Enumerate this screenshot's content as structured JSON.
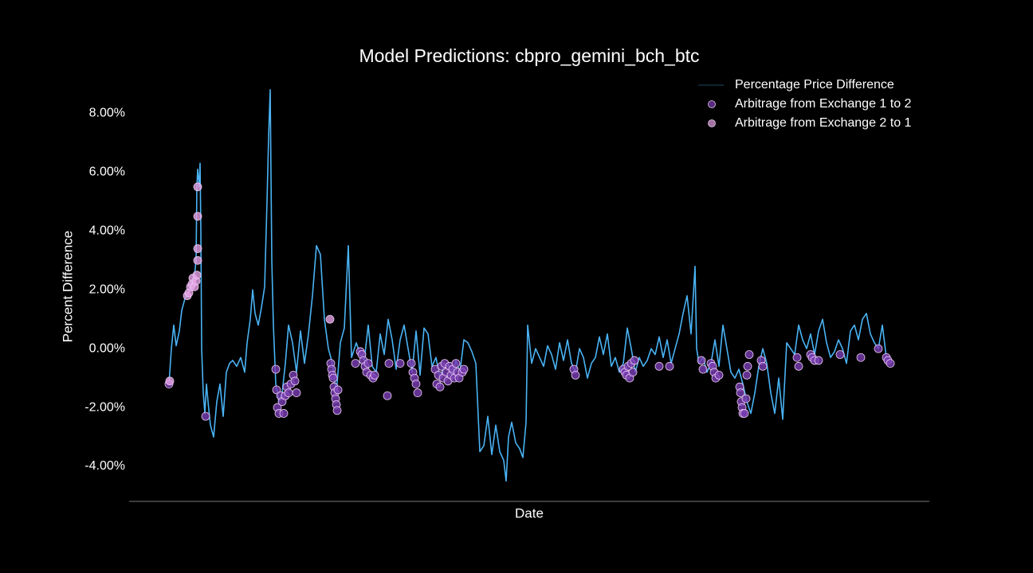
{
  "chart_data": {
    "type": "line",
    "title": "Model Predictions: cbpro_gemini_bch_btc",
    "x_label": "Date",
    "y_label": "Percent Difference",
    "xlim": [
      0,
      1004
    ],
    "ylim": [
      -5.19,
      9.2
    ],
    "yticks": [
      {
        "value": -4,
        "label": "-4.00%"
      },
      {
        "value": -2,
        "label": "-2.00%"
      },
      {
        "value": 0,
        "label": "0.00%"
      },
      {
        "value": 2,
        "label": "2.00%"
      },
      {
        "value": 4,
        "label": "4.00%"
      },
      {
        "value": 6,
        "label": "6.00%"
      },
      {
        "value": 8,
        "label": "8.00%"
      }
    ],
    "legend": "upper right",
    "series": [
      {
        "name": "Percentage Price Difference",
        "type": "line",
        "color": "#4ab3f4",
        "x": [
          50,
          53,
          56,
          59,
          63,
          66,
          70,
          74,
          78,
          82,
          84,
          85,
          86,
          88,
          89,
          90,
          91,
          93,
          95,
          97,
          99,
          102,
          106,
          110,
          114,
          118,
          122,
          126,
          130,
          135,
          140,
          145,
          148,
          152,
          155,
          158,
          162,
          166,
          170,
          173,
          175,
          177,
          179,
          181,
          184,
          188,
          192,
          196,
          200,
          205,
          210,
          215,
          220,
          225,
          230,
          235,
          240,
          245,
          250,
          255,
          260,
          265,
          270,
          275,
          279,
          285,
          290,
          295,
          300,
          305,
          310,
          315,
          320,
          325,
          330,
          335,
          340,
          345,
          350,
          355,
          360,
          365,
          370,
          375,
          380,
          385,
          390,
          395,
          400,
          405,
          410,
          415,
          420,
          425,
          430,
          435,
          440,
          445,
          450,
          455,
          460,
          465,
          470,
          473,
          476,
          480,
          485,
          490,
          494,
          498,
          500,
          505,
          510,
          515,
          520,
          525,
          530,
          535,
          540,
          545,
          550,
          555,
          560,
          565,
          570,
          575,
          580,
          585,
          590,
          595,
          600,
          605,
          610,
          615,
          620,
          625,
          630,
          635,
          640,
          645,
          650,
          655,
          660,
          665,
          670,
          675,
          680,
          685,
          690,
          695,
          700,
          705,
          710,
          712,
          715,
          720,
          725,
          730,
          735,
          740,
          745,
          750,
          755,
          760,
          765,
          770,
          775,
          780,
          785,
          790,
          795,
          800,
          805,
          810,
          815,
          820,
          825,
          830,
          835,
          840,
          845,
          850,
          855,
          860,
          865,
          870,
          875,
          880,
          885,
          890,
          895,
          900,
          905,
          910,
          915,
          920,
          925,
          930,
          935,
          940,
          945,
          950,
          955
        ],
        "values": [
          -1.2,
          0.0,
          0.8,
          0.1,
          0.6,
          1.3,
          1.7,
          1.9,
          2.2,
          2.5,
          3.0,
          5.5,
          6.1,
          5.5,
          6.3,
          4.0,
          0.0,
          -1.5,
          -2.2,
          -1.2,
          -1.8,
          -2.6,
          -3.0,
          -1.8,
          -1.2,
          -2.3,
          -0.8,
          -0.5,
          -0.4,
          -0.6,
          -0.3,
          -0.8,
          0.2,
          1.0,
          2.0,
          1.2,
          0.8,
          1.4,
          2.1,
          5.0,
          7.2,
          8.8,
          3.0,
          0.8,
          -1.2,
          -1.8,
          -1.5,
          -0.5,
          0.8,
          0.2,
          -0.8,
          0.6,
          -0.5,
          0.5,
          1.8,
          3.5,
          3.2,
          1.0,
          0.0,
          -0.5,
          -1.5,
          0.2,
          0.7,
          3.5,
          -0.3,
          0.2,
          -0.2,
          -0.4,
          0.8,
          -0.6,
          -0.8,
          0.5,
          -0.2,
          1.0,
          0.3,
          -0.7,
          0.3,
          0.8,
          0.0,
          -0.8,
          0.6,
          -0.9,
          0.7,
          0.5,
          -0.6,
          -0.3,
          -1.0,
          -0.6,
          -0.5,
          -0.9,
          -0.4,
          -0.8,
          0.3,
          0.2,
          -0.1,
          -0.5,
          -3.5,
          -3.3,
          -2.3,
          -3.6,
          -2.6,
          -3.5,
          -3.8,
          -4.5,
          -3.0,
          -2.5,
          -3.2,
          -3.4,
          -3.7,
          -2.5,
          0.8,
          -0.5,
          0.0,
          -0.3,
          -0.6,
          0.1,
          -0.2,
          -0.7,
          0.2,
          -0.4,
          0.3,
          -0.5,
          -0.8,
          0.0,
          -0.3,
          -1.0,
          -0.5,
          -0.3,
          0.4,
          -0.2,
          0.5,
          -0.6,
          -0.3,
          -0.8,
          -0.5,
          0.7,
          0.0,
          -0.8,
          -0.3,
          -0.6,
          -0.4,
          0.0,
          -0.2,
          0.4,
          -0.3,
          0.3,
          -0.5,
          0.0,
          0.5,
          1.2,
          1.8,
          0.5,
          2.8,
          0.0,
          -0.5,
          -0.3,
          -0.8,
          -0.5,
          0.3,
          -0.6,
          0.8,
          0.0,
          -0.8,
          -1.0,
          -0.7,
          -1.2,
          -1.8,
          -2.2,
          -1.5,
          -0.6,
          0.0,
          -0.5,
          -1.5,
          -2.2,
          -1.0,
          -2.4,
          0.2,
          0.0,
          -0.2,
          0.8,
          0.3,
          0.0,
          0.5,
          -0.2,
          0.6,
          1.0,
          0.2,
          -0.3,
          -0.1,
          0.3,
          0.0,
          -0.5,
          0.6,
          0.8,
          0.3,
          1.0,
          1.2,
          0.5,
          0.2,
          0.0,
          0.8,
          -0.3,
          -0.5
        ]
      },
      {
        "name": "Arbitrage from Exchange 1 to 2",
        "type": "scatter",
        "color": "#7b3fb5",
        "x": [
          50,
          96,
          184,
          185,
          186,
          188,
          190,
          192,
          194,
          196,
          198,
          200,
          203,
          206,
          208,
          210,
          253,
          254,
          255,
          256,
          257,
          258,
          259,
          260,
          261,
          262,
          284,
          290,
          292,
          294,
          296,
          298,
          300,
          303,
          306,
          308,
          324,
          326,
          340,
          354,
          356,
          358,
          360,
          362,
          384,
          386,
          388,
          390,
          392,
          394,
          396,
          398,
          400,
          402,
          404,
          406,
          408,
          410,
          412,
          414,
          418,
          420,
          558,
          560,
          620,
          622,
          624,
          626,
          628,
          630,
          632,
          634,
          665,
          678,
          718,
          720,
          730,
          732,
          734,
          736,
          740,
          766,
          767,
          768,
          769,
          770,
          772,
          774,
          775,
          776,
          778,
          793,
          795,
          838,
          840,
          855,
          857,
          860,
          865,
          892,
          918,
          940,
          950,
          952,
          955
        ],
        "values": [
          -1.2,
          -2.3,
          -0.7,
          -1.4,
          -2.0,
          -2.2,
          -1.6,
          -1.8,
          -2.2,
          -1.6,
          -1.3,
          -1.5,
          -1.2,
          -0.9,
          -1.1,
          -1.5,
          -0.5,
          -0.7,
          -0.9,
          -1.0,
          -1.3,
          -1.5,
          -1.7,
          -1.9,
          -2.1,
          -1.4,
          -0.5,
          -0.1,
          -0.2,
          -0.4,
          -0.6,
          -0.8,
          -0.5,
          -0.9,
          -1.0,
          -0.9,
          -1.6,
          -0.5,
          -0.5,
          -0.5,
          -0.8,
          -1.0,
          -1.2,
          -1.5,
          -0.7,
          -1.2,
          -0.9,
          -1.3,
          -0.6,
          -1.0,
          -0.5,
          -0.8,
          -1.1,
          -0.6,
          -0.9,
          -0.7,
          -1.0,
          -0.5,
          -0.8,
          -1.0,
          -0.8,
          -0.7,
          -0.7,
          -0.9,
          -0.7,
          -0.8,
          -0.9,
          -0.6,
          -1.0,
          -0.5,
          -0.8,
          -0.4,
          -0.6,
          -0.6,
          -0.4,
          -0.7,
          -0.5,
          -0.6,
          -0.8,
          -1.0,
          -0.9,
          -1.3,
          -1.5,
          -1.8,
          -2.0,
          -2.2,
          -2.2,
          -1.7,
          -0.9,
          -0.6,
          -0.2,
          -0.4,
          -0.6,
          -0.3,
          -0.6,
          -0.2,
          -0.3,
          -0.4,
          -0.4,
          -0.2,
          -0.3,
          0.0,
          -0.3,
          -0.4,
          -0.5
        ]
      },
      {
        "name": "Arbitrage from Exchange 2 to 1",
        "type": "scatter",
        "color": "#e7a3e6",
        "x": [
          51,
          73,
          75,
          77,
          79,
          80,
          82,
          84,
          85,
          86,
          86,
          86,
          86,
          252
        ],
        "values": [
          -1.1,
          1.8,
          1.9,
          2.1,
          2.2,
          2.4,
          2.1,
          2.3,
          2.5,
          3.0,
          3.4,
          4.5,
          5.5,
          1.0
        ]
      }
    ]
  }
}
